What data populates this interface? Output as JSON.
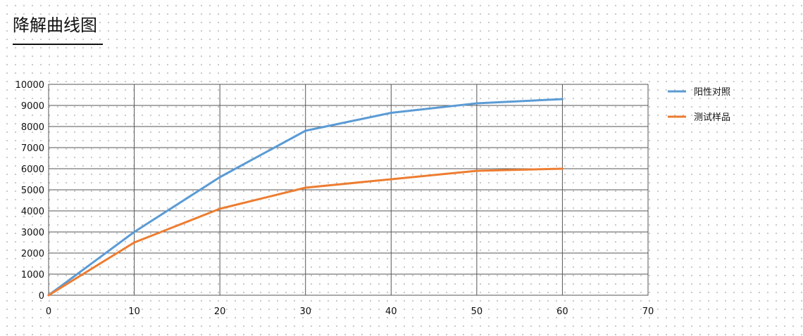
{
  "page": {
    "title": "降解曲线图"
  },
  "chart_data": {
    "type": "line",
    "title": "降解曲线图",
    "xlabel": "",
    "ylabel": "",
    "xlim": [
      0,
      70
    ],
    "ylim": [
      0,
      10000
    ],
    "x_ticks": [
      0,
      10,
      20,
      30,
      40,
      50,
      60,
      70
    ],
    "y_ticks": [
      0,
      1000,
      2000,
      3000,
      4000,
      5000,
      6000,
      7000,
      8000,
      9000,
      10000
    ],
    "grid": true,
    "legend_position": "right",
    "x": [
      0,
      10,
      20,
      30,
      40,
      50,
      60
    ],
    "series": [
      {
        "name": "阳性对照",
        "color": "#5b9bd5",
        "values": [
          0,
          3000,
          5600,
          7800,
          8650,
          9100,
          9300
        ]
      },
      {
        "name": "测试样品",
        "color": "#ed7d31",
        "values": [
          0,
          2500,
          4100,
          5100,
          5500,
          5900,
          6000
        ]
      }
    ]
  }
}
